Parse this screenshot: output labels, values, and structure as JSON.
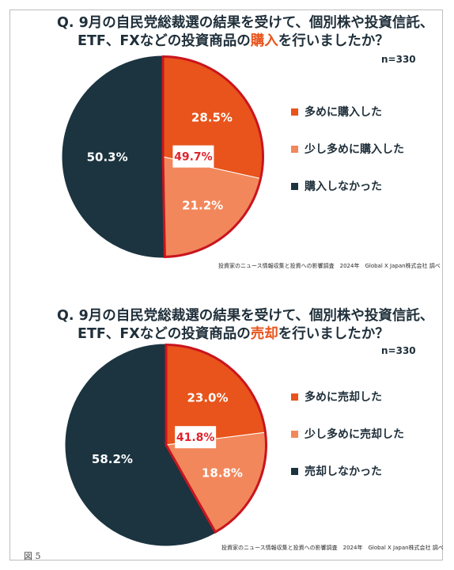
{
  "charts": [
    {
      "question_prefix": "Q. 9月の自民党総裁選の結果を受けて、個別株や投資信託、",
      "question_line2_pre": "ETF、FXなどの投資商品の",
      "question_highlight": "購入",
      "question_line2_post": "を行いましたか？",
      "sample_size": "n=330",
      "source": "投資家のニュース情報収集と投資への影響調査　2024年　Global X Japan株式会社 調べ",
      "combined_label": "49.7%"
    },
    {
      "question_prefix": "Q. 9月の自民党総裁選の結果を受けて、個別株や投資信託、",
      "question_line2_pre": "ETF、FXなどの投資商品の",
      "question_highlight": "売却",
      "question_line2_post": "を行いましたか？",
      "sample_size": "n=330",
      "source": "投資家のニュース情報収集と投資への影響調査　2024年　Global X Japan株式会社 調べ",
      "combined_label": "41.8%"
    }
  ],
  "chart_data": [
    {
      "type": "pie",
      "categories": [
        "多めに購入した",
        "少し多めに購入した",
        "購入しなかった"
      ],
      "values": [
        28.5,
        21.2,
        50.3
      ],
      "labels": [
        "28.5%",
        "21.2%",
        "50.3%"
      ],
      "colors": [
        "#e8541b",
        "#f2875b",
        "#1b3440"
      ],
      "highlight_border_color": "#c9151e",
      "legend_position": "right"
    },
    {
      "type": "pie",
      "categories": [
        "多めに売却した",
        "少し多めに売却した",
        "売却しなかった"
      ],
      "values": [
        23.0,
        18.8,
        58.2
      ],
      "labels": [
        "23.0%",
        "18.8%",
        "58.2%"
      ],
      "colors": [
        "#e8541b",
        "#f2875b",
        "#1b3440"
      ],
      "highlight_border_color": "#c9151e",
      "legend_position": "right"
    }
  ],
  "figure_label": "図 5"
}
